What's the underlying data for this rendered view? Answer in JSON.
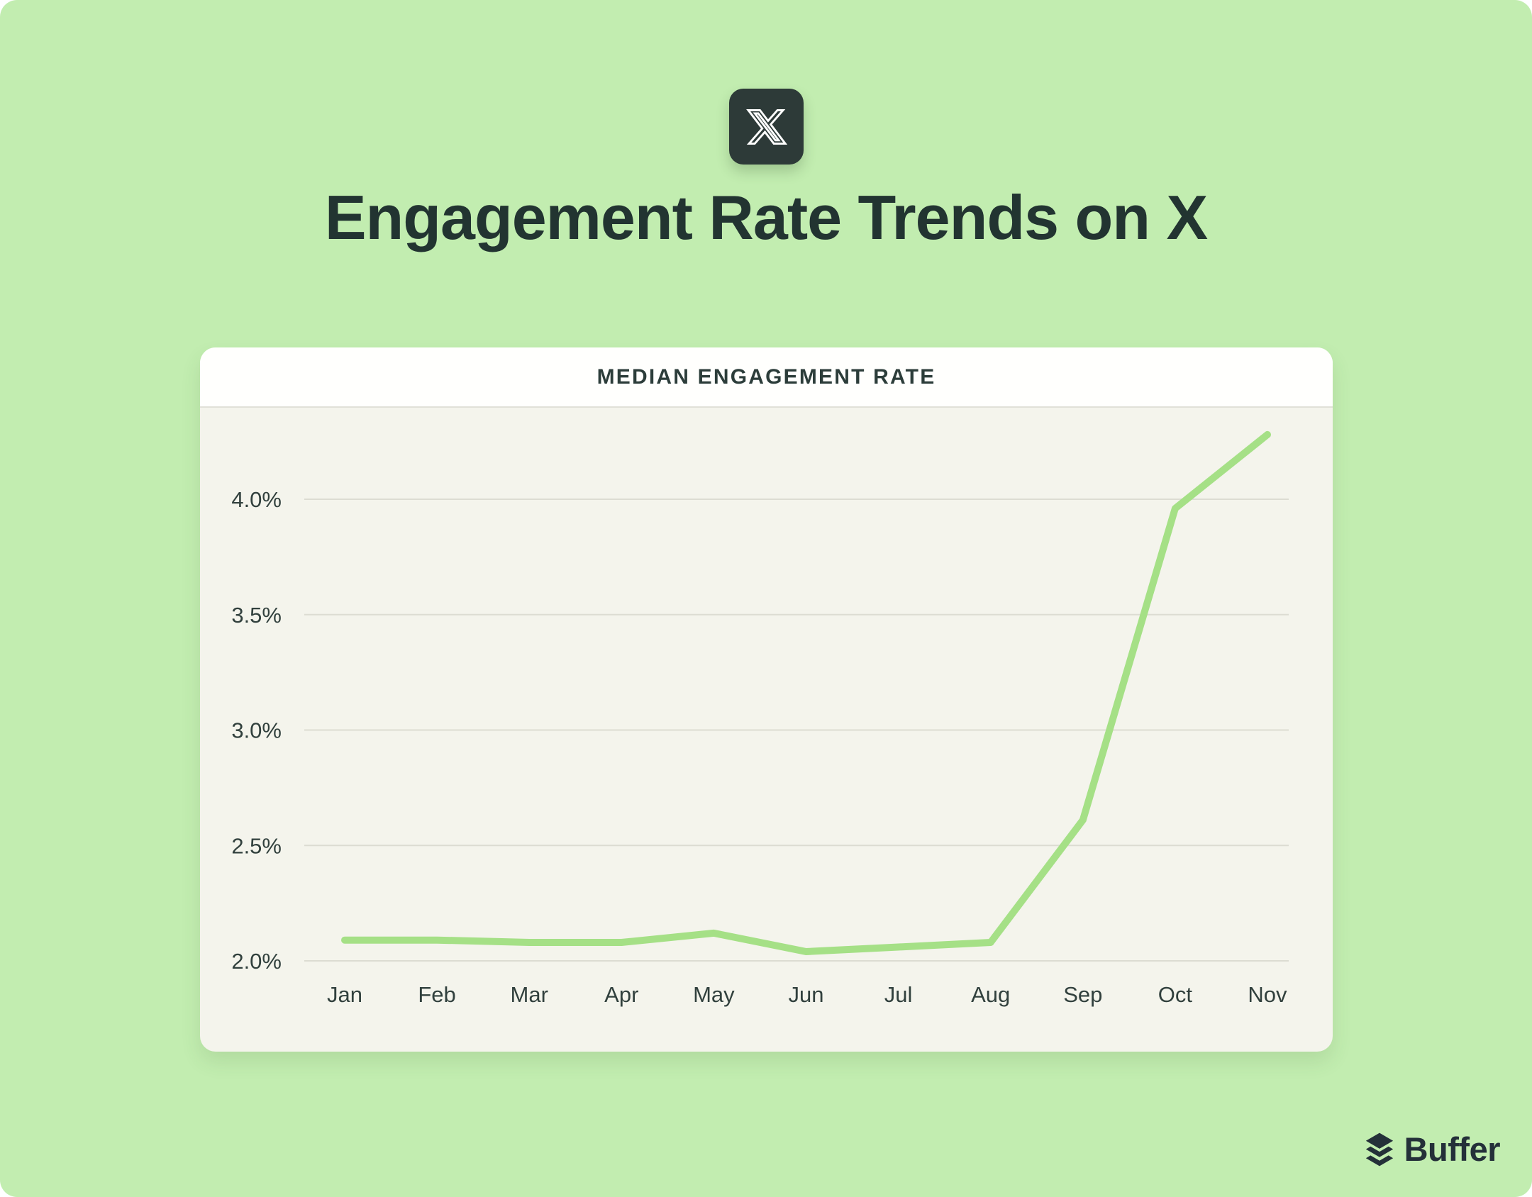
{
  "page": {
    "panel_color": "#c2edb0",
    "text_color": "#223431"
  },
  "header": {
    "platform_icon": "x-logo-icon",
    "title": "Engagement Rate Trends on X"
  },
  "chart_data": {
    "type": "line",
    "title": "MEDIAN ENGAGEMENT RATE",
    "categories": [
      "Jan",
      "Feb",
      "Mar",
      "Apr",
      "May",
      "Jun",
      "Jul",
      "Aug",
      "Sep",
      "Oct",
      "Nov"
    ],
    "series": [
      {
        "name": "Median engagement rate",
        "values": [
          2.09,
          2.09,
          2.08,
          2.08,
          2.12,
          2.04,
          2.06,
          2.08,
          2.61,
          3.96,
          4.28
        ]
      }
    ],
    "unit": "%",
    "y_ticks": [
      2.0,
      2.5,
      3.0,
      3.5,
      4.0
    ],
    "y_tick_labels": [
      "2.0%",
      "2.5%",
      "3.0%",
      "3.5%",
      "4.0%"
    ],
    "ylim": [
      1.9,
      4.4
    ],
    "grid": true,
    "legend": false,
    "line_color": "#a5e086",
    "grid_color": "#dcdcd2",
    "axis_label_color": "#31403d"
  },
  "footer": {
    "brand": "Buffer"
  }
}
